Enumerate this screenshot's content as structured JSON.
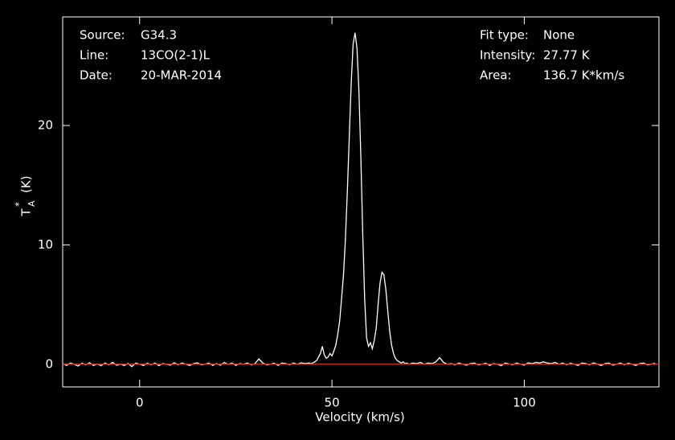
{
  "chart_data": {
    "type": "line",
    "x_label": "Velocity (km/s)",
    "y_label": {
      "main": "T",
      "sup": "*",
      "sub": "A",
      "unit": "(K)"
    },
    "annotations": [
      {
        "label": "Source:",
        "value": "G34.3"
      },
      {
        "label": "Line:",
        "value": "13CO(2-1)L"
      },
      {
        "label": "Date:",
        "value": "20-MAR-2014"
      },
      {
        "label": "Fit type:",
        "value": "None"
      },
      {
        "label": "Intensity:",
        "value": "27.77 K"
      },
      {
        "label": "Area:",
        "value": "136.7 K*km/s"
      }
    ],
    "color": "#ffffff",
    "baseline": {
      "value": 0,
      "color": "#c0302a"
    },
    "xlim": [
      -20,
      135
    ],
    "ylim": [
      -1.9,
      29.1
    ],
    "xticks": [
      0,
      50,
      100
    ],
    "yticks": [
      0,
      10,
      20
    ],
    "x": [
      -20,
      -19,
      -18,
      -17,
      -16,
      -15,
      -14,
      -13,
      -12,
      -11,
      -10,
      -9,
      -8,
      -7,
      -6,
      -5,
      -4,
      -3,
      -2,
      -1,
      0,
      1,
      2,
      3,
      4,
      5,
      6,
      7,
      8,
      9,
      10,
      11,
      12,
      13,
      14,
      15,
      16,
      17,
      18,
      19,
      20,
      21,
      22,
      23,
      24,
      25,
      26,
      27,
      28,
      29,
      30,
      31,
      32,
      33,
      34,
      35,
      36,
      37,
      38,
      39,
      40,
      41,
      42,
      43,
      44,
      44.5,
      45,
      45.5,
      46,
      46.5,
      47,
      47.5,
      48,
      48.5,
      49,
      49.5,
      50,
      50.5,
      51,
      51.5,
      52,
      52.5,
      53,
      53.5,
      54,
      54.5,
      55,
      55.5,
      56,
      56.5,
      57,
      57.5,
      58,
      58.5,
      59,
      59.5,
      60,
      60.5,
      61,
      61.5,
      62,
      62.5,
      63,
      63.5,
      64,
      64.5,
      65,
      65.5,
      66,
      66.5,
      67,
      67.5,
      68,
      68.5,
      69,
      69.5,
      70,
      71,
      72,
      73,
      74,
      75,
      76,
      77,
      78,
      79,
      80,
      81,
      82,
      83,
      84,
      85,
      86,
      87,
      88,
      89,
      90,
      91,
      92,
      93,
      94,
      95,
      96,
      97,
      98,
      99,
      100,
      101,
      102,
      103,
      104,
      105,
      106,
      107,
      108,
      109,
      110,
      111,
      112,
      113,
      114,
      115,
      116,
      117,
      118,
      119,
      120,
      121,
      122,
      123,
      124,
      125,
      126,
      127,
      128,
      129,
      130,
      131,
      132,
      133,
      134
    ],
    "values": [
      0.05,
      -0.1,
      0.1,
      0.0,
      -0.15,
      0.08,
      -0.05,
      0.12,
      -0.1,
      0.02,
      -0.12,
      0.1,
      -0.05,
      0.15,
      -0.08,
      0.0,
      -0.1,
      0.06,
      -0.2,
      0.1,
      0.0,
      -0.1,
      0.08,
      -0.05,
      0.1,
      -0.12,
      0.05,
      0.0,
      -0.08,
      0.12,
      -0.05,
      0.1,
      0.0,
      -0.1,
      0.05,
      0.12,
      -0.05,
      0.0,
      0.1,
      -0.1,
      0.05,
      -0.08,
      0.15,
      -0.02,
      0.1,
      -0.1,
      0.05,
      0.0,
      0.1,
      -0.05,
      0.05,
      0.45,
      0.1,
      -0.05,
      0.0,
      0.08,
      -0.1,
      0.1,
      0.05,
      -0.05,
      0.1,
      0.0,
      0.12,
      0.05,
      0.1,
      0.05,
      0.1,
      0.2,
      0.3,
      0.6,
      0.9,
      1.5,
      0.8,
      0.5,
      0.6,
      0.9,
      0.7,
      1.1,
      1.6,
      2.5,
      3.6,
      5.5,
      7.5,
      10.5,
      14.5,
      19.0,
      23.5,
      26.8,
      27.77,
      26.5,
      23.0,
      17.5,
      11.0,
      5.5,
      2.2,
      1.5,
      1.8,
      1.3,
      2.0,
      3.0,
      5.0,
      6.8,
      7.7,
      7.5,
      6.3,
      4.5,
      2.8,
      1.6,
      0.9,
      0.5,
      0.3,
      0.2,
      0.1,
      0.2,
      0.05,
      0.1,
      0.0,
      0.1,
      0.05,
      0.15,
      0.0,
      0.1,
      0.05,
      0.2,
      0.55,
      0.15,
      0.0,
      0.05,
      -0.05,
      0.1,
      0.0,
      -0.08,
      0.05,
      0.1,
      -0.05,
      0.0,
      0.08,
      -0.1,
      0.05,
      0.0,
      -0.12,
      0.1,
      0.02,
      -0.05,
      0.1,
      0.0,
      -0.08,
      0.12,
      0.05,
      0.15,
      0.1,
      0.2,
      0.1,
      0.05,
      0.15,
      0.0,
      0.1,
      -0.05,
      0.08,
      0.0,
      -0.1,
      0.1,
      0.05,
      -0.05,
      0.12,
      0.0,
      -0.1,
      0.05,
      0.1,
      -0.08,
      0.0,
      0.1,
      -0.05,
      0.08,
      0.0,
      -0.1,
      0.05,
      0.1,
      -0.05,
      0.0,
      0.08
    ]
  }
}
